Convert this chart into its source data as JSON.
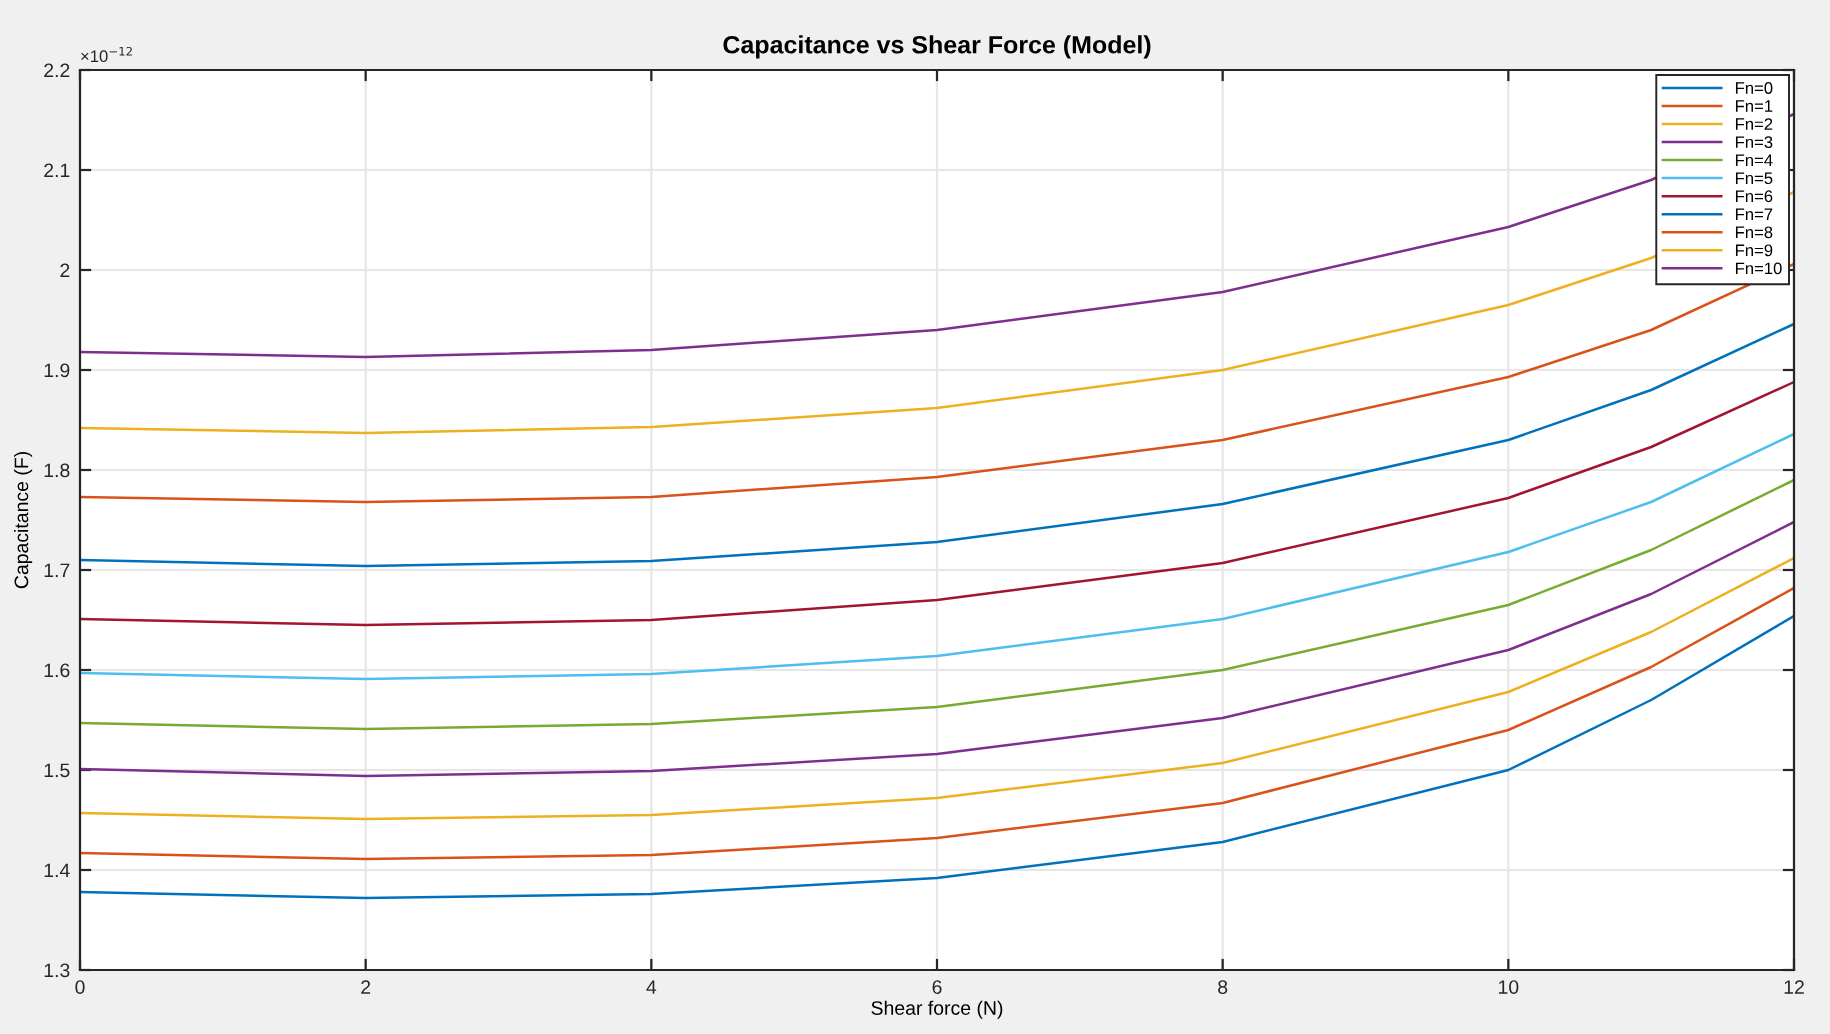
{
  "chart_data": {
    "type": "line",
    "title": "Capacitance vs Shear Force (Model)",
    "xlabel": "Shear force (N)",
    "ylabel": "Capacitance (F)",
    "annotations": [
      "×10$^{−12}$"
    ],
    "x": [
      0,
      2,
      4,
      6,
      8,
      10,
      11,
      12
    ],
    "series": [
      {
        "name": "Fn=0",
        "color": "#0072bd",
        "values": [
          1.378,
          1.372,
          1.376,
          1.392,
          1.428,
          1.5,
          1.57,
          1.654
        ]
      },
      {
        "name": "Fn=1",
        "color": "#d95319",
        "values": [
          1.417,
          1.411,
          1.415,
          1.432,
          1.467,
          1.54,
          1.603,
          1.682
        ]
      },
      {
        "name": "Fn=2",
        "color": "#edb120",
        "values": [
          1.457,
          1.451,
          1.455,
          1.472,
          1.507,
          1.578,
          1.638,
          1.712
        ]
      },
      {
        "name": "Fn=3",
        "color": "#7e2f8e",
        "values": [
          1.501,
          1.494,
          1.499,
          1.516,
          1.552,
          1.62,
          1.676,
          1.748
        ]
      },
      {
        "name": "Fn=4",
        "color": "#77ac30",
        "values": [
          1.547,
          1.541,
          1.546,
          1.563,
          1.6,
          1.665,
          1.72,
          1.79
        ]
      },
      {
        "name": "Fn=5",
        "color": "#4dbeee",
        "values": [
          1.597,
          1.591,
          1.596,
          1.614,
          1.651,
          1.718,
          1.768,
          1.836
        ]
      },
      {
        "name": "Fn=6",
        "color": "#a2142f",
        "values": [
          1.651,
          1.645,
          1.65,
          1.67,
          1.707,
          1.772,
          1.823,
          1.888
        ]
      },
      {
        "name": "Fn=7",
        "color": "#0072bd",
        "values": [
          1.71,
          1.704,
          1.709,
          1.728,
          1.766,
          1.83,
          1.88,
          1.946
        ]
      },
      {
        "name": "Fn=8",
        "color": "#d95319",
        "values": [
          1.773,
          1.768,
          1.773,
          1.793,
          1.83,
          1.893,
          1.94,
          2.006
        ]
      },
      {
        "name": "Fn=9",
        "color": "#edb120",
        "values": [
          1.842,
          1.837,
          1.843,
          1.862,
          1.9,
          1.965,
          2.012,
          2.078
        ]
      },
      {
        "name": "Fn=10",
        "color": "#7e2f8e",
        "values": [
          1.918,
          1.913,
          1.92,
          1.94,
          1.978,
          2.043,
          2.09,
          2.156
        ]
      }
    ],
    "xlim": [
      0,
      12
    ],
    "ylim": [
      1.3,
      2.2
    ],
    "xticks": [
      0,
      2,
      4,
      6,
      8,
      10,
      12
    ],
    "yticks": [
      1.3,
      1.4,
      1.5,
      1.6,
      1.7,
      1.8,
      1.9,
      2,
      2.1,
      2.2
    ],
    "grid": true,
    "legend": "top right"
  }
}
